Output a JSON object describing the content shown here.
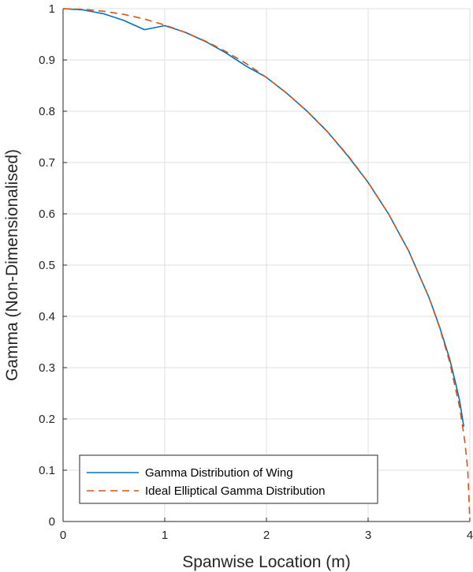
{
  "chart_data": {
    "type": "line",
    "title": "",
    "xlabel": "Spanwise Location (m)",
    "ylabel": "Gamma (Non-Dimensionalised)",
    "xlim": [
      0,
      4
    ],
    "ylim": [
      0,
      1
    ],
    "xticks": [
      "0",
      "1",
      "2",
      "3",
      "4"
    ],
    "yticks": [
      "0",
      "0.1",
      "0.2",
      "0.3",
      "0.4",
      "0.5",
      "0.6",
      "0.7",
      "0.8",
      "0.9",
      "1"
    ],
    "grid": true,
    "legend_position": "bottom-left",
    "series": [
      {
        "name": "Gamma Distribution of Wing",
        "color": "#0072BD",
        "style": "solid",
        "x": [
          0,
          0.2,
          0.4,
          0.6,
          0.8,
          1.0,
          1.2,
          1.4,
          1.6,
          1.8,
          2.0,
          2.2,
          2.4,
          2.6,
          2.8,
          3.0,
          3.2,
          3.4,
          3.6,
          3.7,
          3.8,
          3.86,
          3.9,
          3.94
        ],
        "y": [
          1.0,
          0.9975,
          0.99,
          0.977,
          0.959,
          0.967,
          0.954,
          0.936,
          0.914,
          0.888,
          0.866,
          0.835,
          0.8,
          0.76,
          0.713,
          0.661,
          0.6,
          0.527,
          0.436,
          0.381,
          0.318,
          0.27,
          0.235,
          0.185
        ]
      },
      {
        "name": "Ideal Elliptical Gamma Distribution",
        "color": "#D95319",
        "style": "dashed",
        "x": [
          0,
          0.2,
          0.4,
          0.6,
          0.8,
          1.0,
          1.2,
          1.4,
          1.6,
          1.8,
          2.0,
          2.2,
          2.4,
          2.6,
          2.8,
          3.0,
          3.2,
          3.4,
          3.6,
          3.7,
          3.8,
          3.9,
          3.95,
          3.98,
          4.0
        ],
        "y": [
          1.0,
          0.9987,
          0.995,
          0.9887,
          0.9798,
          0.9682,
          0.9539,
          0.9367,
          0.9165,
          0.893,
          0.866,
          0.8352,
          0.8,
          0.76,
          0.7141,
          0.6614,
          0.6,
          0.5268,
          0.4359,
          0.3797,
          0.3122,
          0.2222,
          0.1578,
          0.0999,
          0.0
        ]
      }
    ]
  }
}
